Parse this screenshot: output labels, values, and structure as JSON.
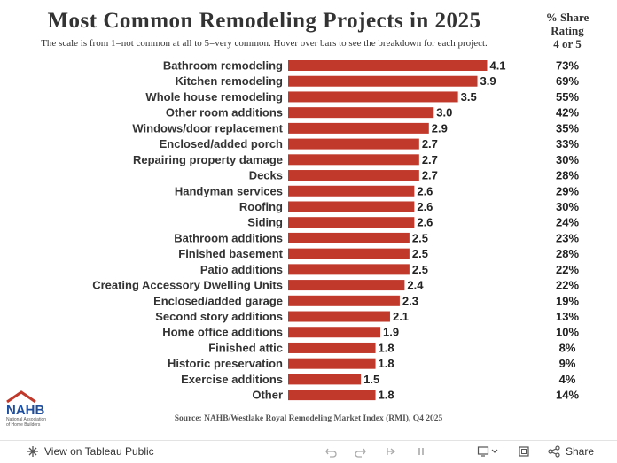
{
  "title": "Most Common Remodeling Projects in 2025",
  "subtitle": "The scale is from 1=not common at all to 5=very common. Hover over bars to see the breakdown for each project.",
  "share_header": {
    "line1": "% Share",
    "line2": "Rating",
    "line3": "4 or 5"
  },
  "source": "Source: NAHB/Westlake Royal Remodeling Market Index (RMI), Q4 2025",
  "logo": {
    "letters": "NAHB",
    "line1": "National Association",
    "line2": "of Home Builders"
  },
  "toolbar": {
    "view_label": "View on Tableau Public",
    "share_label": "Share"
  },
  "colors": {
    "bar": "#c0392b",
    "text": "#222222"
  },
  "chart_data": {
    "type": "bar",
    "orientation": "horizontal",
    "xlim": [
      0,
      5
    ],
    "categories": [
      "Bathroom remodeling",
      "Kitchen remodeling",
      "Whole house remodeling",
      "Other room additions",
      "Windows/door replacement",
      "Enclosed/added porch",
      "Repairing property damage",
      "Decks",
      "Handyman services",
      "Roofing",
      "Siding",
      "Bathroom additions",
      "Finished basement",
      "Patio additions",
      "Creating Accessory Dwelling Units",
      "Enclosed/added garage",
      "Second story additions",
      "Home office additions",
      "Finished attic",
      "Historic preservation",
      "Exercise additions",
      "Other"
    ],
    "values": [
      4.1,
      3.9,
      3.5,
      3.0,
      2.9,
      2.7,
      2.7,
      2.7,
      2.6,
      2.6,
      2.6,
      2.5,
      2.5,
      2.5,
      2.4,
      2.3,
      2.1,
      1.9,
      1.8,
      1.8,
      1.5,
      1.8
    ],
    "value_labels": [
      "4.1",
      "3.9",
      "3.5",
      "3.0",
      "2.9",
      "2.7",
      "2.7",
      "2.7",
      "2.6",
      "2.6",
      "2.6",
      "2.5",
      "2.5",
      "2.5",
      "2.4",
      "2.3",
      "2.1",
      "1.9",
      "1.8",
      "1.8",
      "1.5",
      "1.8"
    ],
    "share_rating_4_or_5": [
      "73%",
      "69%",
      "55%",
      "42%",
      "35%",
      "33%",
      "30%",
      "28%",
      "29%",
      "30%",
      "24%",
      "23%",
      "28%",
      "22%",
      "22%",
      "19%",
      "13%",
      "10%",
      "8%",
      "9%",
      "4%",
      "14%"
    ]
  }
}
